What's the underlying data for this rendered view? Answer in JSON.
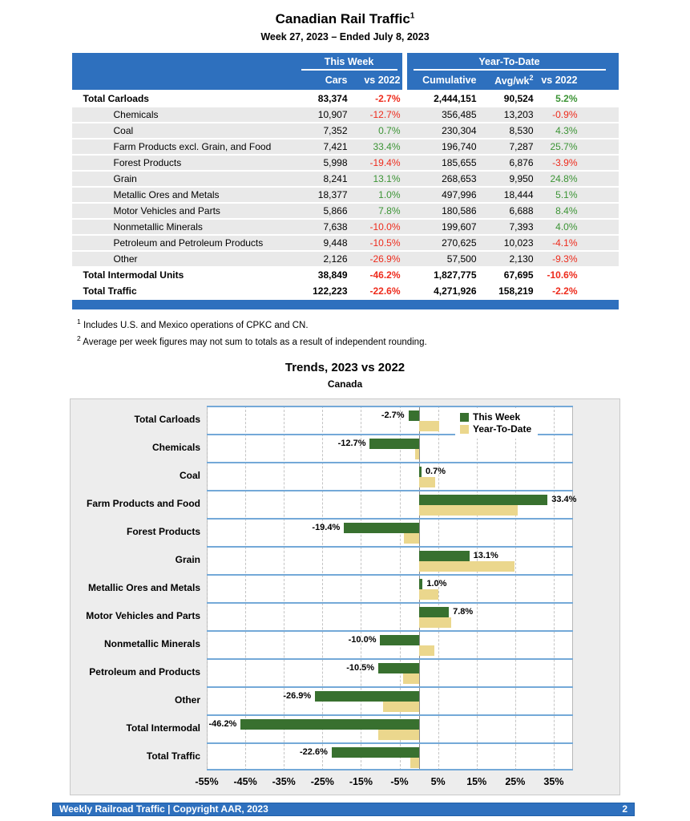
{
  "page": {
    "title": "Canadian Rail Traffic",
    "title_sup": "1",
    "subtitle": "Week 27, 2023 – Ended July 8, 2023"
  },
  "table": {
    "group_headers": {
      "this_week": "This Week",
      "ytd": "Year-To-Date"
    },
    "columns": {
      "cars": "Cars",
      "tw_vs": "vs 2022",
      "cumulative": "Cumulative",
      "avg_wk": "Avg/wk",
      "avg_wk_sup": "2",
      "ytd_vs": "vs 2022"
    },
    "rows": [
      {
        "label": "Total Carloads",
        "total": true,
        "cars": "83,374",
        "tw_vs": "-2.7%",
        "cumulative": "2,444,151",
        "avg_wk": "90,524",
        "ytd_vs": "5.2%"
      },
      {
        "label": "Chemicals",
        "total": false,
        "cars": "10,907",
        "tw_vs": "-12.7%",
        "cumulative": "356,485",
        "avg_wk": "13,203",
        "ytd_vs": "-0.9%"
      },
      {
        "label": "Coal",
        "total": false,
        "cars": "7,352",
        "tw_vs": "0.7%",
        "cumulative": "230,304",
        "avg_wk": "8,530",
        "ytd_vs": "4.3%"
      },
      {
        "label": "Farm Products excl. Grain, and Food",
        "total": false,
        "cars": "7,421",
        "tw_vs": "33.4%",
        "cumulative": "196,740",
        "avg_wk": "7,287",
        "ytd_vs": "25.7%"
      },
      {
        "label": "Forest Products",
        "total": false,
        "cars": "5,998",
        "tw_vs": "-19.4%",
        "cumulative": "185,655",
        "avg_wk": "6,876",
        "ytd_vs": "-3.9%"
      },
      {
        "label": "Grain",
        "total": false,
        "cars": "8,241",
        "tw_vs": "13.1%",
        "cumulative": "268,653",
        "avg_wk": "9,950",
        "ytd_vs": "24.8%"
      },
      {
        "label": "Metallic Ores and Metals",
        "total": false,
        "cars": "18,377",
        "tw_vs": "1.0%",
        "cumulative": "497,996",
        "avg_wk": "18,444",
        "ytd_vs": "5.1%"
      },
      {
        "label": "Motor Vehicles and Parts",
        "total": false,
        "cars": "5,866",
        "tw_vs": "7.8%",
        "cumulative": "180,586",
        "avg_wk": "6,688",
        "ytd_vs": "8.4%"
      },
      {
        "label": "Nonmetallic Minerals",
        "total": false,
        "cars": "7,638",
        "tw_vs": "-10.0%",
        "cumulative": "199,607",
        "avg_wk": "7,393",
        "ytd_vs": "4.0%"
      },
      {
        "label": "Petroleum and Petroleum Products",
        "total": false,
        "cars": "9,448",
        "tw_vs": "-10.5%",
        "cumulative": "270,625",
        "avg_wk": "10,023",
        "ytd_vs": "-4.1%"
      },
      {
        "label": "Other",
        "total": false,
        "cars": "2,126",
        "tw_vs": "-26.9%",
        "cumulative": "57,500",
        "avg_wk": "2,130",
        "ytd_vs": "-9.3%"
      },
      {
        "label": "Total Intermodal Units",
        "total": true,
        "cars": "38,849",
        "tw_vs": "-46.2%",
        "cumulative": "1,827,775",
        "avg_wk": "67,695",
        "ytd_vs": "-10.6%"
      },
      {
        "label": "Total Traffic",
        "total": true,
        "cars": "122,223",
        "tw_vs": "-22.6%",
        "cumulative": "4,271,926",
        "avg_wk": "158,219",
        "ytd_vs": "-2.2%"
      }
    ]
  },
  "footnotes": [
    {
      "sup": "1",
      "text": "Includes U.S. and Mexico operations of CPKC and CN."
    },
    {
      "sup": "2",
      "text": "Average per week figures may not sum to totals as a result of independent rounding."
    }
  ],
  "chart_data": {
    "type": "bar",
    "orientation": "horizontal",
    "title": "Trends, 2023 vs 2022",
    "subtitle": "Canada",
    "categories": [
      "Total Carloads",
      "Chemicals",
      "Coal",
      "Farm Products and Food",
      "Forest Products",
      "Grain",
      "Metallic Ores and Metals",
      "Motor Vehicles and Parts",
      "Nonmetallic Minerals",
      "Petroleum and Products",
      "Other",
      "Total Intermodal",
      "Total Traffic"
    ],
    "series": [
      {
        "name": "This Week",
        "color": "#38702F",
        "values": [
          -2.7,
          -12.7,
          0.7,
          33.4,
          -19.4,
          13.1,
          1.0,
          7.8,
          -10.0,
          -10.5,
          -26.9,
          -46.2,
          -22.6
        ],
        "labels": [
          "-2.7%",
          "-12.7%",
          "0.7%",
          "33.4%",
          "-19.4%",
          "13.1%",
          "1.0%",
          "7.8%",
          "-10.0%",
          "-10.5%",
          "-26.9%",
          "-46.2%",
          "-22.6%"
        ]
      },
      {
        "name": "Year-To-Date",
        "color": "#EBD78D",
        "values": [
          5.2,
          -0.9,
          4.3,
          25.7,
          -3.9,
          24.8,
          5.1,
          8.4,
          4.0,
          -4.1,
          -9.3,
          -10.6,
          -2.2
        ]
      }
    ],
    "xlim": [
      -55,
      40
    ],
    "x_tick_values": [
      -55,
      -45,
      -35,
      -25,
      -15,
      -5,
      5,
      15,
      25,
      35
    ],
    "x_tick_labels": [
      "-55%",
      "-45%",
      "-35%",
      "-25%",
      "-15%",
      "-5%",
      "5%",
      "15%",
      "25%",
      "35%"
    ],
    "grid": "vertical-dashed",
    "legend_position": "top-right"
  },
  "footer": {
    "left": "Weekly Railroad Traffic | Copyright AAR, 2023",
    "page": "2"
  },
  "colors": {
    "header_blue": "#2E70BE",
    "row_gray": "#E9E9E9",
    "negative_red": "#EE2B1C",
    "positive_green": "#3C9435",
    "bar_green": "#38702F",
    "bar_tan": "#EBD78D",
    "separator_blue": "#74A9D8",
    "chart_bg": "#EDEDED"
  }
}
